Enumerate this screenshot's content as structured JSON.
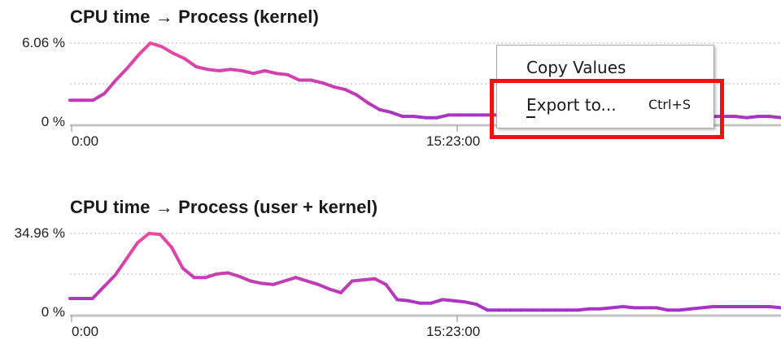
{
  "charts": [
    {
      "title": "CPU time → Process (kernel)",
      "y_max_label": "6.06 %",
      "y_min_label": "0 %",
      "x_start_label": "0:00",
      "x_mid_label": "15:23:00"
    },
    {
      "title": "CPU time → Process (user + kernel)",
      "y_max_label": "34.96 %",
      "y_min_label": "0 %",
      "x_start_label": "0:00",
      "x_mid_label": "15:23:00"
    }
  ],
  "context_menu": {
    "copy_values_label": "Copy Values",
    "export_label": "Export to...",
    "export_shortcut": "Ctrl+S"
  },
  "chart_data": [
    {
      "type": "line",
      "title": "CPU time → Process (kernel)",
      "xlabel": "",
      "ylabel": "",
      "ylim": [
        0,
        6.06
      ],
      "grid": true,
      "x_tick_labels": [
        "0:00",
        "15:23:00"
      ],
      "y_tick_labels": [
        "0 %",
        "6.06 %"
      ],
      "colors": {
        "low": "#9b30c8",
        "high": "#ec4aa0"
      },
      "series": [
        {
          "values": [
            1.8,
            1.8,
            1.8,
            2.3,
            3.3,
            4.2,
            5.2,
            6.06,
            5.8,
            5.3,
            4.9,
            4.3,
            4.1,
            4.0,
            4.1,
            4.0,
            3.8,
            4.0,
            3.8,
            3.7,
            3.3,
            3.3,
            3.1,
            2.8,
            2.6,
            2.2,
            1.6,
            1.1,
            0.9,
            0.6,
            0.6,
            0.5,
            0.5,
            0.7,
            0.7,
            0.7,
            0.7,
            0.7,
            0.7,
            0.7,
            0.7,
            0.7,
            0.6,
            0.6,
            0.6,
            0.6,
            0.6,
            0.6,
            0.6,
            0.6,
            0.6,
            0.6,
            0.6,
            0.6,
            0.6,
            0.6,
            0.6,
            0.6,
            0.6,
            0.5,
            0.6,
            0.6,
            0.5
          ]
        }
      ]
    },
    {
      "type": "line",
      "title": "CPU time → Process (user + kernel)",
      "xlabel": "",
      "ylabel": "",
      "ylim": [
        0,
        34.96
      ],
      "grid": true,
      "x_tick_labels": [
        "0:00",
        "15:23:00"
      ],
      "y_tick_labels": [
        "0 %",
        "34.96 %"
      ],
      "colors": {
        "low": "#9b30c8",
        "high": "#ec4aa0"
      },
      "series": [
        {
          "values": [
            7,
            7,
            7,
            12,
            17,
            24,
            31,
            34.96,
            34.5,
            29,
            20,
            16,
            16,
            17.5,
            18,
            16.5,
            14.5,
            13.5,
            13,
            14.5,
            16,
            14.5,
            13,
            11,
            9.5,
            14.5,
            15,
            15.5,
            13,
            6.5,
            6,
            5,
            5,
            6.5,
            6,
            5.5,
            4.5,
            2,
            2,
            2,
            2,
            2,
            2,
            2,
            2,
            2,
            2.5,
            2.5,
            3,
            3.5,
            3,
            3,
            3,
            2,
            2,
            2.5,
            3,
            3.5,
            3.5,
            3.5,
            3.5,
            3.5,
            3.5,
            3
          ]
        }
      ]
    }
  ]
}
